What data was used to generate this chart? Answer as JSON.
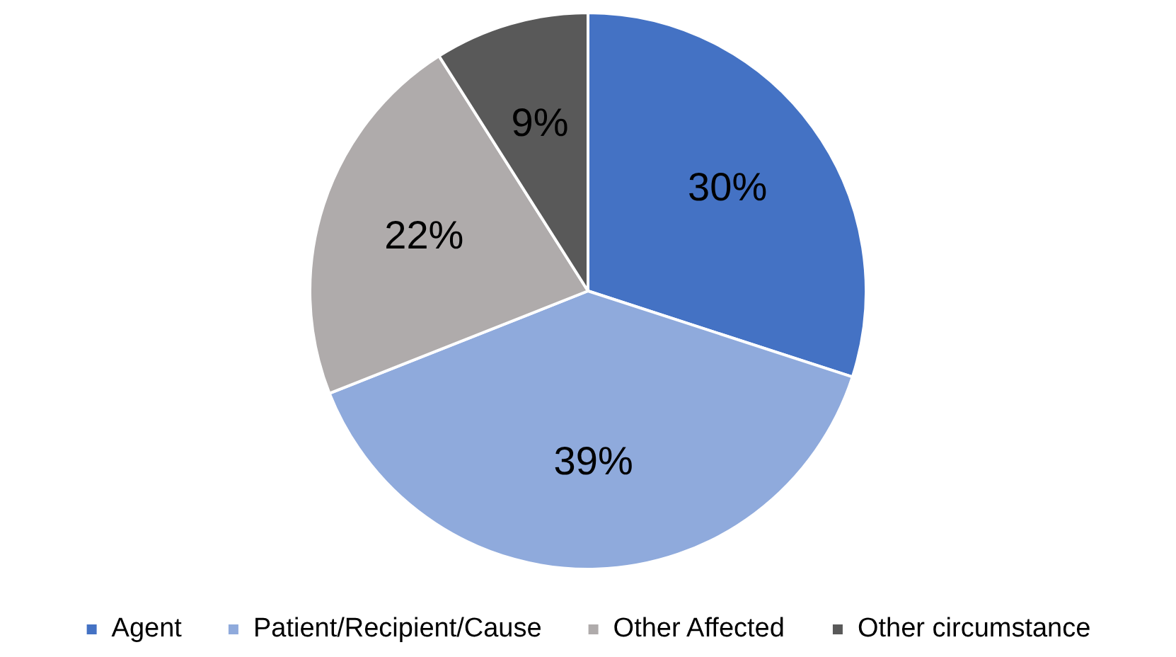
{
  "chart_data": {
    "type": "pie",
    "categories": [
      "Agent",
      "Patient/Recipient/Cause",
      "Other Affected",
      "Other circumstance"
    ],
    "values": [
      30,
      39,
      22,
      9
    ],
    "colors": [
      "#4472c4",
      "#8faadc",
      "#afabab",
      "#595959"
    ],
    "value_labels": [
      "30%",
      "39%",
      "22%",
      "9%"
    ],
    "legend": "bottom"
  }
}
